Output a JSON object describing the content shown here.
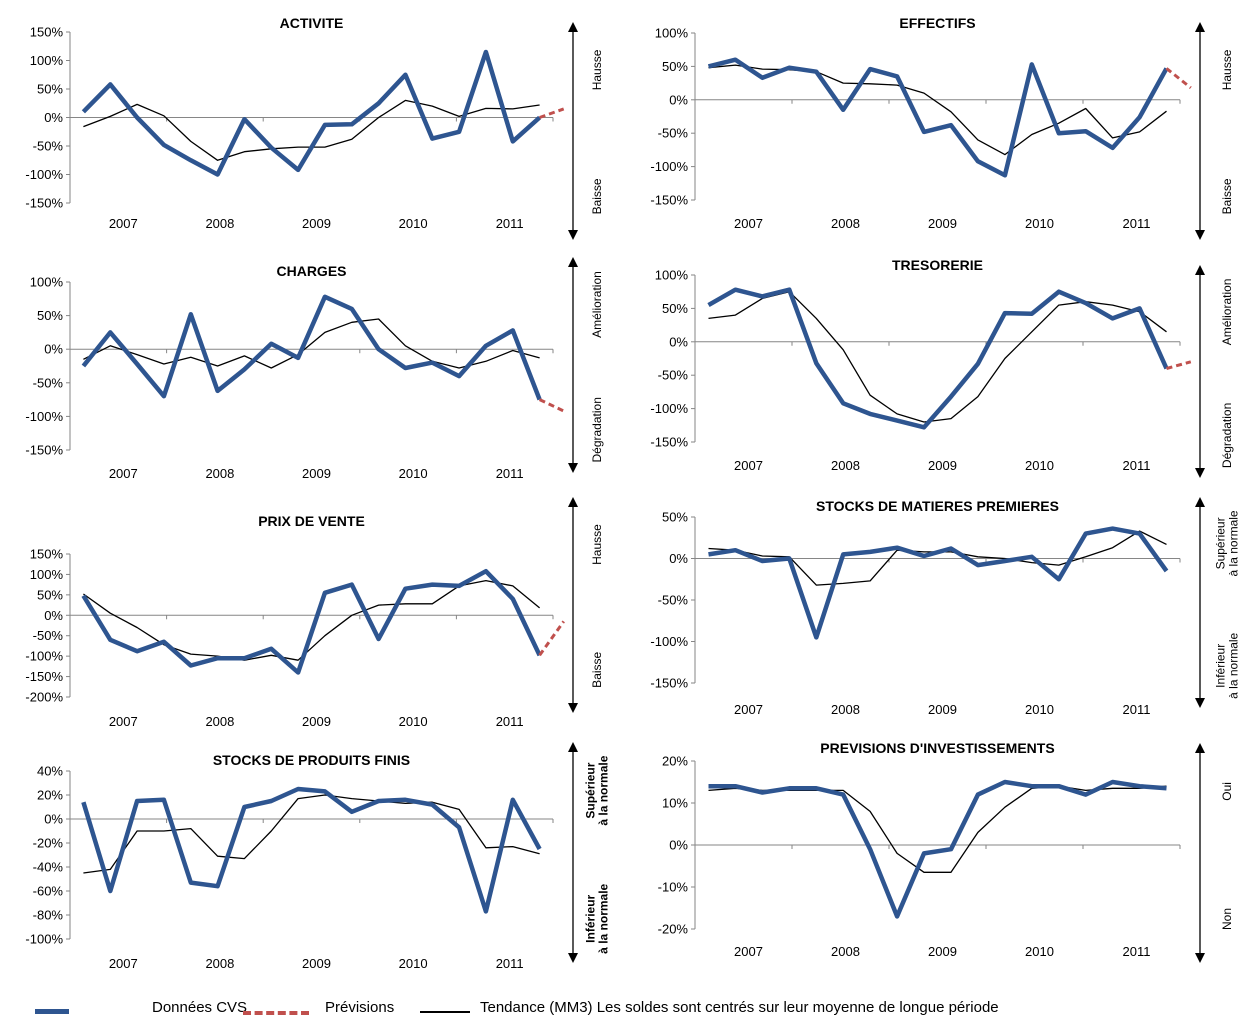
{
  "colors": {
    "cvs": "#2E5590",
    "forecast": "#C0504D",
    "trend": "#000000"
  },
  "legend": {
    "cvs": "Données CVS",
    "forecast": "Prévisions",
    "trend": "Tendance (MM3) Les soldes sont centrés sur leur moyenne de longue période"
  },
  "chart_data": [
    {
      "type": "line",
      "title": "ACTIVITE",
      "yticks": [
        "150%",
        "100%",
        "50%",
        "0%",
        "-50%",
        "-100%",
        "-150%"
      ],
      "ylim": [
        -150,
        150
      ],
      "xlabels": [
        "2007",
        "2008",
        "2009",
        "2010",
        "2011"
      ],
      "side_top": "Hausse",
      "side_bottom": "Baisse",
      "side_bold": false,
      "series": [
        {
          "key": "cvs",
          "values": [
            10,
            58,
            0,
            -48,
            -75,
            -100,
            -3,
            -53,
            -92,
            -13,
            -12,
            25,
            75,
            -37,
            -25,
            115,
            -42,
            0
          ]
        },
        {
          "key": "trend",
          "values": [
            -16,
            2,
            23,
            3,
            -42,
            -75,
            -60,
            -55,
            -52,
            -52,
            -38,
            0,
            30,
            20,
            2,
            16,
            15,
            22
          ]
        },
        {
          "key": "forecast",
          "start": 17,
          "values": [
            0,
            15
          ]
        }
      ]
    },
    {
      "type": "line",
      "title": "EFFECTIFS",
      "yticks": [
        "100%",
        "50%",
        "0%",
        "-50%",
        "-100%",
        "-150%"
      ],
      "ylim": [
        -150,
        100
      ],
      "xlabels": [
        "2007",
        "2008",
        "2009",
        "2010",
        "2011"
      ],
      "side_top": "Hausse",
      "side_bottom": "Baisse",
      "side_bold": false,
      "series": [
        {
          "key": "cvs",
          "values": [
            50,
            60,
            33,
            48,
            42,
            -15,
            46,
            35,
            -48,
            -38,
            -92,
            -113,
            53,
            -50,
            -47,
            -72,
            -26,
            47
          ]
        },
        {
          "key": "trend",
          "values": [
            48,
            52,
            46,
            45,
            42,
            25,
            24,
            22,
            10,
            -18,
            -60,
            -82,
            -52,
            -35,
            -13,
            -57,
            -48,
            -17
          ]
        },
        {
          "key": "forecast",
          "start": 17,
          "values": [
            47,
            18
          ]
        }
      ]
    },
    {
      "type": "line",
      "title": "CHARGES",
      "yticks": [
        "100%",
        "50%",
        "0%",
        "-50%",
        "-100%",
        "-150%"
      ],
      "ylim": [
        -150,
        100
      ],
      "xlabels": [
        "2007",
        "2008",
        "2009",
        "2010",
        "2011"
      ],
      "side_top": "Amélioration",
      "side_bottom": "Dégradation",
      "side_bold": false,
      "series": [
        {
          "key": "cvs",
          "values": [
            -25,
            25,
            -22,
            -70,
            52,
            -62,
            -30,
            8,
            -13,
            78,
            60,
            0,
            -28,
            -20,
            -40,
            5,
            28,
            -75
          ]
        },
        {
          "key": "trend",
          "values": [
            -15,
            5,
            -8,
            -22,
            -12,
            -25,
            -10,
            -28,
            -8,
            25,
            40,
            45,
            5,
            -18,
            -28,
            -18,
            -2,
            -13
          ]
        },
        {
          "key": "forecast",
          "start": 17,
          "values": [
            -75,
            -92
          ]
        }
      ]
    },
    {
      "type": "line",
      "title": "TRESORERIE",
      "yticks": [
        "100%",
        "50%",
        "0%",
        "-50%",
        "-100%",
        "-150%"
      ],
      "ylim": [
        -150,
        100
      ],
      "xlabels": [
        "2007",
        "2008",
        "2009",
        "2010",
        "2011"
      ],
      "side_top": "Amélioration",
      "side_bottom": "Dégradation",
      "side_bold": false,
      "series": [
        {
          "key": "cvs",
          "values": [
            55,
            78,
            68,
            78,
            -32,
            -92,
            -108,
            -118,
            -128,
            -82,
            -33,
            43,
            42,
            75,
            58,
            35,
            50,
            -40
          ]
        },
        {
          "key": "trend",
          "values": [
            35,
            40,
            65,
            75,
            35,
            -12,
            -80,
            -108,
            -120,
            -115,
            -82,
            -25,
            15,
            55,
            60,
            55,
            45,
            15
          ]
        },
        {
          "key": "forecast",
          "start": 17,
          "values": [
            -40,
            -30
          ]
        }
      ]
    },
    {
      "type": "line",
      "title": "PRIX DE VENTE",
      "yticks": [
        "150%",
        "100%",
        "50%",
        "0%",
        "-50%",
        "-100%",
        "-150%",
        "-200%"
      ],
      "ylim": [
        -200,
        150
      ],
      "xlabels": [
        "2007",
        "2008",
        "2009",
        "2010",
        "2011"
      ],
      "side_top": "Hausse",
      "side_bottom": "Baisse",
      "side_bold": false,
      "series": [
        {
          "key": "cvs",
          "values": [
            48,
            -60,
            -88,
            -65,
            -123,
            -105,
            -105,
            -82,
            -140,
            55,
            75,
            -58,
            65,
            75,
            72,
            108,
            40,
            -98
          ]
        },
        {
          "key": "trend",
          "values": [
            52,
            5,
            -30,
            -72,
            -95,
            -100,
            -110,
            -98,
            -110,
            -50,
            0,
            25,
            28,
            28,
            72,
            85,
            72,
            18
          ]
        },
        {
          "key": "forecast",
          "start": 17,
          "values": [
            -98,
            -15
          ]
        }
      ]
    },
    {
      "type": "line",
      "title": "STOCKS DE MATIERES PREMIERES",
      "yticks": [
        "50%",
        "0%",
        "-50%",
        "-100%",
        "-150%"
      ],
      "ylim": [
        -150,
        50
      ],
      "xlabels": [
        "2007",
        "2008",
        "2009",
        "2010",
        "2011"
      ],
      "side_top": "Supérieur à la normale",
      "side_bottom": "Inférieur à la normale",
      "side_bold": false,
      "series": [
        {
          "key": "cvs",
          "values": [
            5,
            10,
            -3,
            0,
            -95,
            5,
            8,
            13,
            3,
            12,
            -8,
            -3,
            2,
            -25,
            30,
            36,
            30,
            -15
          ]
        },
        {
          "key": "trend",
          "values": [
            12,
            10,
            3,
            2,
            -32,
            -30,
            -27,
            10,
            8,
            8,
            2,
            0,
            -5,
            -8,
            2,
            13,
            33,
            17
          ]
        }
      ]
    },
    {
      "type": "line",
      "title": "STOCKS DE PRODUITS FINIS",
      "yticks": [
        "40%",
        "20%",
        "0%",
        "-20%",
        "-40%",
        "-60%",
        "-80%",
        "-100%"
      ],
      "ylim": [
        -100,
        40
      ],
      "xlabels": [
        "2007",
        "2008",
        "2009",
        "2010",
        "2011"
      ],
      "side_top": "Supérieur à la normale",
      "side_bottom": "Inférieur à la normale",
      "side_bold": true,
      "series": [
        {
          "key": "cvs",
          "values": [
            14,
            -60,
            15,
            16,
            -53,
            -56,
            10,
            15,
            25,
            23,
            6,
            15,
            16,
            12,
            -7,
            -77,
            16,
            -25
          ]
        },
        {
          "key": "trend",
          "values": [
            -45,
            -42,
            -10,
            -10,
            -8,
            -31,
            -33,
            -10,
            17,
            20,
            17,
            15,
            13,
            14,
            8,
            -24,
            -23,
            -29
          ]
        }
      ]
    },
    {
      "type": "line",
      "title": "PREVISIONS D'INVESTISSEMENTS",
      "yticks": [
        "20%",
        "10%",
        "0%",
        "-10%",
        "-20%"
      ],
      "ylim": [
        -20,
        20
      ],
      "xlabels": [
        "2007",
        "2008",
        "2009",
        "2010",
        "2011"
      ],
      "side_top": "Oui",
      "side_bottom": "Non",
      "side_bold": false,
      "series": [
        {
          "key": "cvs",
          "values": [
            14,
            14,
            12.5,
            13.5,
            13.5,
            12,
            -1,
            -17,
            -2,
            -1,
            12,
            15,
            14,
            14,
            12,
            15,
            14,
            13.5
          ]
        },
        {
          "key": "trend",
          "values": [
            13,
            13.5,
            13,
            13,
            13,
            13,
            8,
            -2,
            -6.5,
            -6.5,
            3,
            9,
            13.5,
            14,
            13,
            13.5,
            13.5,
            14
          ]
        }
      ]
    }
  ]
}
